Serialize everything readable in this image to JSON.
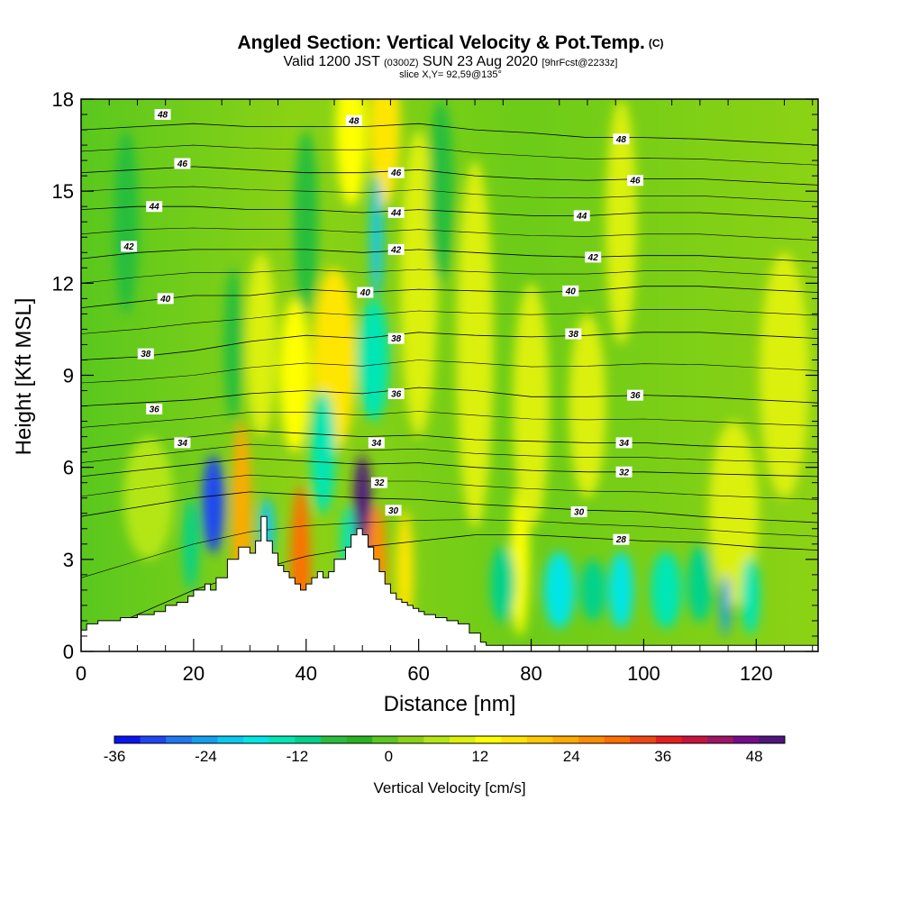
{
  "header": {
    "title": "Angled Section: Vertical Velocity & Pot.Temp.",
    "title_tag": "(C)",
    "valid_prefix": "Valid 1200 JST",
    "valid_utc": "(0300Z)",
    "valid_date": "SUN 23 Aug 2020",
    "fcst": "[9hrFcst@2233z]",
    "slice": "slice X,Y= 92,59@135°"
  },
  "chart_data": {
    "type": "heatmap",
    "xlabel": "Distance [nm]",
    "ylabel": "Height [Kft MSL]",
    "xlim": [
      0,
      131
    ],
    "ylim": [
      0,
      18
    ],
    "x_ticks": [
      0,
      20,
      40,
      60,
      80,
      100,
      120
    ],
    "y_ticks": [
      0,
      3,
      6,
      9,
      12,
      15,
      18
    ],
    "colorbar": {
      "label": "Vertical Velocity [cm/s]",
      "range": [
        -36,
        52
      ],
      "tick_values": [
        -36,
        -24,
        -12,
        0,
        12,
        24,
        36,
        48
      ],
      "colors": [
        "#0a14f0",
        "#1e46f5",
        "#1e78f0",
        "#14a0f0",
        "#0ac8f0",
        "#00e6e6",
        "#00e6b4",
        "#00d28c",
        "#28be3c",
        "#28b41e",
        "#5ac81e",
        "#8cd214",
        "#b4e614",
        "#dcf00a",
        "#ffff00",
        "#ffe600",
        "#ffc800",
        "#ffaa00",
        "#ff8c00",
        "#ff6e00",
        "#f04614",
        "#e61e1e",
        "#c8143c",
        "#a01464",
        "#780a8c",
        "#50147d"
      ]
    },
    "terrain": {
      "x": [
        0,
        1,
        1,
        3,
        3,
        7,
        7,
        10,
        10,
        13,
        13,
        15,
        15,
        17,
        17,
        19,
        19,
        20,
        20,
        22,
        22,
        23,
        23,
        24,
        24,
        26,
        26,
        28,
        28,
        30,
        30,
        31,
        31,
        32,
        32,
        33,
        33,
        34,
        34,
        35,
        35,
        36,
        36,
        37,
        37,
        38,
        38,
        39,
        39,
        40,
        40,
        41,
        41,
        42,
        42,
        43,
        43,
        44,
        44,
        45,
        45,
        47,
        47,
        48,
        48,
        49,
        49,
        50,
        50,
        51,
        51,
        52,
        52,
        53,
        53,
        54,
        54,
        55,
        55,
        56,
        56,
        57,
        57,
        58,
        58,
        59,
        59,
        60,
        60,
        61,
        61,
        63,
        63,
        65,
        65,
        67,
        67,
        69,
        69,
        71,
        71,
        72,
        72,
        131
      ],
      "y": [
        0.7,
        0.7,
        0.9,
        0.9,
        1.0,
        1.0,
        1.1,
        1.1,
        1.2,
        1.2,
        1.3,
        1.3,
        1.5,
        1.5,
        1.6,
        1.6,
        1.8,
        1.8,
        2.0,
        2.0,
        2.2,
        2.2,
        2.0,
        2.0,
        2.4,
        2.4,
        3.0,
        3.0,
        3.4,
        3.4,
        3.2,
        3.2,
        3.6,
        3.6,
        4.4,
        4.4,
        3.6,
        3.6,
        3.2,
        3.2,
        2.8,
        2.8,
        2.6,
        2.6,
        2.4,
        2.4,
        2.2,
        2.2,
        2.0,
        2.0,
        2.2,
        2.2,
        2.4,
        2.4,
        2.6,
        2.6,
        2.4,
        2.4,
        2.6,
        2.6,
        3.0,
        3.0,
        3.4,
        3.4,
        3.8,
        3.8,
        4.0,
        4.0,
        3.8,
        3.8,
        3.4,
        3.4,
        3.0,
        3.0,
        2.6,
        2.6,
        2.2,
        2.2,
        1.9,
        1.9,
        1.7,
        1.7,
        1.6,
        1.6,
        1.5,
        1.5,
        1.4,
        1.4,
        1.3,
        1.3,
        1.2,
        1.2,
        1.1,
        1.1,
        1.0,
        1.0,
        0.9,
        0.9,
        0.6,
        0.6,
        0.3,
        0.3,
        0.2,
        0.2
      ]
    },
    "isentropes": [
      {
        "label": "28",
        "label_x": 96,
        "label_y": 3.65,
        "y": [
          0.4,
          1.2,
          2.0,
          2.6,
          3.1,
          3.4,
          3.6,
          3.8,
          3.8,
          3.7,
          3.6,
          3.55,
          3.4,
          3.3
        ]
      },
      {
        "label": "30",
        "label_x": 88.5,
        "label_y": 4.55,
        "y": [
          4.4,
          4.7,
          5.0,
          5.2,
          5.1,
          5.0,
          4.95,
          4.8,
          4.7,
          4.6,
          4.55,
          4.4,
          4.3,
          4.2
        ]
      },
      {
        "label": "32",
        "label_x": 96.5,
        "label_y": 5.85,
        "y": [
          5.7,
          5.9,
          6.1,
          6.3,
          6.2,
          6.1,
          6.15,
          6.0,
          5.9,
          5.85,
          5.85,
          5.8,
          5.75,
          5.7
        ]
      },
      {
        "label": "34",
        "label_x": 96.5,
        "label_y": 6.8,
        "y": [
          6.6,
          6.8,
          7.0,
          7.2,
          7.1,
          7.0,
          7.05,
          6.9,
          6.85,
          6.8,
          6.8,
          6.7,
          6.65,
          6.6
        ]
      },
      {
        "label": "36",
        "label_x": 98.5,
        "label_y": 8.35,
        "y": [
          8.0,
          8.1,
          8.2,
          8.4,
          8.5,
          8.4,
          8.6,
          8.5,
          8.3,
          8.3,
          8.35,
          8.3,
          8.2,
          8.1
        ]
      },
      {
        "label": "38",
        "label_x": 87.5,
        "label_y": 10.35,
        "y": [
          9.5,
          9.6,
          9.8,
          10.1,
          10.3,
          10.2,
          10.4,
          10.3,
          10.25,
          10.3,
          10.4,
          10.4,
          10.3,
          10.2
        ]
      },
      {
        "label": "40",
        "label_x": 87,
        "label_y": 11.75,
        "y": [
          11.2,
          11.4,
          11.6,
          11.6,
          11.8,
          11.7,
          11.8,
          11.75,
          11.7,
          11.75,
          11.9,
          11.9,
          11.8,
          11.7
        ]
      },
      {
        "label": "42",
        "label_x": 91,
        "label_y": 12.85,
        "y": [
          12.8,
          13.0,
          13.1,
          13.1,
          13.1,
          13.0,
          13.1,
          13.0,
          12.9,
          12.85,
          12.9,
          12.9,
          12.8,
          12.7
        ]
      },
      {
        "label": "44",
        "label_x": 89,
        "label_y": 14.2,
        "y": [
          14.4,
          14.5,
          14.5,
          14.4,
          14.4,
          14.3,
          14.4,
          14.3,
          14.2,
          14.2,
          14.3,
          14.3,
          14.2,
          14.1
        ]
      },
      {
        "label": "46",
        "label_x": 98.5,
        "label_y": 15.35,
        "y": [
          15.6,
          15.7,
          15.8,
          15.7,
          15.6,
          15.6,
          15.7,
          15.5,
          15.4,
          15.35,
          15.4,
          15.4,
          15.3,
          15.2
        ]
      },
      {
        "label": "48",
        "label_x": 96,
        "label_y": 16.7,
        "y": [
          17.0,
          17.1,
          17.2,
          17.1,
          17.1,
          17.1,
          17.2,
          17.0,
          16.9,
          16.75,
          16.75,
          16.7,
          16.6,
          16.5
        ]
      }
    ],
    "isentrope_x": [
      0,
      10,
      20,
      30,
      40,
      50,
      60,
      70,
      80,
      90,
      100,
      110,
      120,
      131
    ],
    "extra_labels": [
      {
        "text": "48",
        "x": 14.5,
        "y": 17.5
      },
      {
        "text": "48",
        "x": 48.5,
        "y": 17.3
      },
      {
        "text": "46",
        "x": 18,
        "y": 15.9
      },
      {
        "text": "46",
        "x": 56,
        "y": 15.6
      },
      {
        "text": "44",
        "x": 13,
        "y": 14.5
      },
      {
        "text": "44",
        "x": 56,
        "y": 14.3
      },
      {
        "text": "42",
        "x": 8.5,
        "y": 13.2
      },
      {
        "text": "42",
        "x": 56,
        "y": 13.1
      },
      {
        "text": "40",
        "x": 15,
        "y": 11.5
      },
      {
        "text": "40",
        "x": 50.5,
        "y": 11.7
      },
      {
        "text": "38",
        "x": 11.5,
        "y": 9.7
      },
      {
        "text": "38",
        "x": 56,
        "y": 10.2
      },
      {
        "text": "36",
        "x": 13,
        "y": 7.9
      },
      {
        "text": "36",
        "x": 56,
        "y": 8.4
      },
      {
        "text": "34",
        "x": 18,
        "y": 6.8
      },
      {
        "text": "34",
        "x": 52.5,
        "y": 6.8
      },
      {
        "text": "32",
        "x": 53,
        "y": 5.5
      },
      {
        "text": "30",
        "x": 55.5,
        "y": 4.6
      }
    ],
    "updrafts": [
      {
        "x": 39,
        "y": 2.4,
        "w": 1.6,
        "h": 6,
        "value": 30
      },
      {
        "x": 50,
        "y": 4.8,
        "w": 1.4,
        "h": 3.2,
        "value": 50
      },
      {
        "x": 28.5,
        "y": 4.5,
        "w": 1.6,
        "h": 6,
        "value": 22
      },
      {
        "x": 52.5,
        "y": 2.8,
        "w": 1.6,
        "h": 4,
        "value": 26
      },
      {
        "x": 57.5,
        "y": 2.6,
        "w": 1.4,
        "h": 4,
        "value": 18
      },
      {
        "x": 45,
        "y": 9.5,
        "w": 3.5,
        "h": 6,
        "value": 16
      },
      {
        "x": 38,
        "y": 9.0,
        "w": 2.5,
        "h": 5,
        "value": 14
      },
      {
        "x": 54,
        "y": 17,
        "w": 2.5,
        "h": 5,
        "value": 16
      },
      {
        "x": 48,
        "y": 17,
        "w": 2.5,
        "h": 5,
        "value": 14
      },
      {
        "x": 78,
        "y": 3.0,
        "w": 1.5,
        "h": 5,
        "value": 14
      },
      {
        "x": 80,
        "y": 8,
        "w": 3,
        "h": 8,
        "value": 10
      },
      {
        "x": 70,
        "y": 10,
        "w": 3,
        "h": 12,
        "value": 8
      },
      {
        "x": 90,
        "y": 8,
        "w": 3,
        "h": 6,
        "value": 8
      },
      {
        "x": 96,
        "y": 14,
        "w": 2.5,
        "h": 8,
        "value": 10
      },
      {
        "x": 116,
        "y": 4.5,
        "w": 4,
        "h": 6,
        "value": 8
      },
      {
        "x": 32,
        "y": 10,
        "w": 2.5,
        "h": 6,
        "value": 10
      },
      {
        "x": 12,
        "y": 5,
        "w": 4,
        "h": 4,
        "value": 6
      },
      {
        "x": 60,
        "y": 12,
        "w": 3,
        "h": 10,
        "value": 8
      },
      {
        "x": 125,
        "y": 9,
        "w": 4,
        "h": 8,
        "value": 8
      }
    ],
    "downdrafts": [
      {
        "x": 23.5,
        "y": 4.8,
        "w": 1.8,
        "h": 3.2,
        "value": -32
      },
      {
        "x": 52.5,
        "y": 13.5,
        "w": 1.0,
        "h": 4,
        "value": -20
      },
      {
        "x": 33,
        "y": 4,
        "w": 1.2,
        "h": 2,
        "value": -20
      },
      {
        "x": 52,
        "y": 9.5,
        "w": 2.5,
        "h": 4,
        "value": -14
      },
      {
        "x": 43,
        "y": 6.5,
        "w": 2,
        "h": 4,
        "value": -14
      },
      {
        "x": 47.5,
        "y": 3.5,
        "w": 1.2,
        "h": 2.5,
        "value": -14
      },
      {
        "x": 19.5,
        "y": 3.5,
        "w": 1.2,
        "h": 3,
        "value": -12
      },
      {
        "x": 85,
        "y": 2.0,
        "w": 2.5,
        "h": 2.5,
        "value": -18
      },
      {
        "x": 96,
        "y": 2.0,
        "w": 2.0,
        "h": 2.5,
        "value": -16
      },
      {
        "x": 104,
        "y": 2.0,
        "w": 2.5,
        "h": 2.5,
        "value": -14
      },
      {
        "x": 114.5,
        "y": 1.5,
        "w": 0.8,
        "h": 2,
        "value": -24
      },
      {
        "x": 119,
        "y": 1.8,
        "w": 1.5,
        "h": 2.5,
        "value": -14
      },
      {
        "x": 75,
        "y": 2.2,
        "w": 2,
        "h": 2.5,
        "value": -12
      },
      {
        "x": 91,
        "y": 2.0,
        "w": 2,
        "h": 2,
        "value": -12
      },
      {
        "x": 110,
        "y": 2.2,
        "w": 2,
        "h": 2.5,
        "value": -12
      },
      {
        "x": 27,
        "y": 10,
        "w": 1.5,
        "h": 5,
        "value": -8
      },
      {
        "x": 8,
        "y": 14,
        "w": 2,
        "h": 6,
        "value": -6
      },
      {
        "x": 40,
        "y": 14,
        "w": 2,
        "h": 6,
        "value": -6
      },
      {
        "x": 64,
        "y": 15,
        "w": 2,
        "h": 6,
        "value": -6
      }
    ]
  }
}
